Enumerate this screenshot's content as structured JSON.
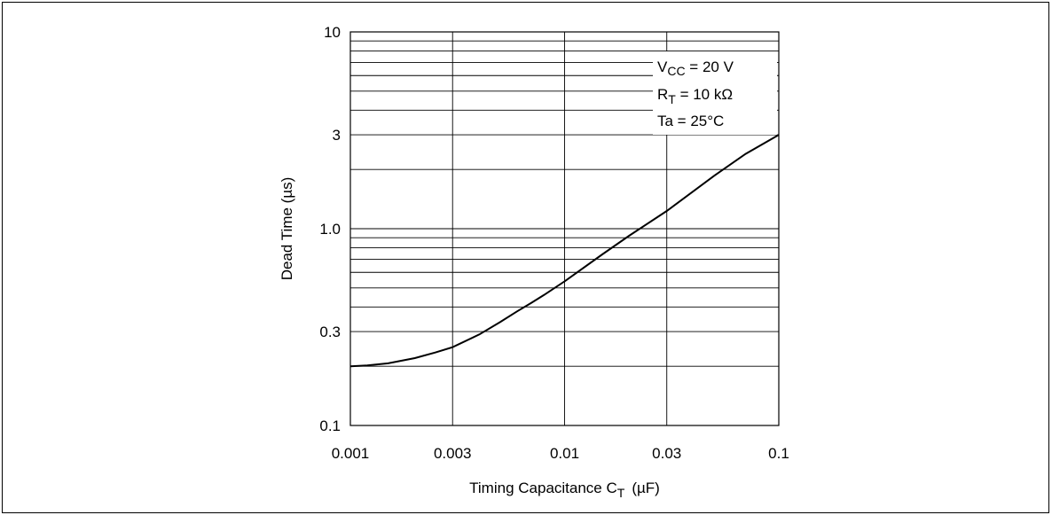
{
  "chart_data": {
    "type": "line",
    "x_scale": "log",
    "y_scale": "log",
    "xlim": [
      0.001,
      0.1
    ],
    "ylim": [
      0.1,
      10
    ],
    "xlabel": "Timing Capacitance  C",
    "xlabel_sub": "T",
    "xlabel_unit": "(µF)",
    "ylabel": "Dead Time  (µs)",
    "x_ticks": [
      {
        "value": 0.001,
        "label": "0.001"
      },
      {
        "value": 0.003,
        "label": "0.003"
      },
      {
        "value": 0.01,
        "label": "0.01"
      },
      {
        "value": 0.03,
        "label": "0.03"
      },
      {
        "value": 0.1,
        "label": "0.1"
      }
    ],
    "y_ticks": [
      {
        "value": 0.1,
        "label": "0.1"
      },
      {
        "value": 0.3,
        "label": "0.3"
      },
      {
        "value": 1.0,
        "label": "1.0"
      },
      {
        "value": 3,
        "label": "3"
      },
      {
        "value": 10,
        "label": "10"
      }
    ],
    "grid": true,
    "annotations": {
      "vcc": {
        "main": "V",
        "sub": "CC",
        "rest": " = 20 V"
      },
      "rt": {
        "main": "R",
        "sub": "T",
        "rest": " = 10 kΩ"
      },
      "ta": {
        "text": "Ta = 25°C"
      }
    },
    "series": [
      {
        "x": [
          0.001,
          0.0012,
          0.0015,
          0.002,
          0.0025,
          0.003,
          0.004,
          0.005,
          0.006,
          0.007,
          0.008,
          0.01,
          0.015,
          0.02,
          0.03,
          0.05,
          0.07,
          0.1
        ],
        "y": [
          0.2,
          0.202,
          0.207,
          0.22,
          0.235,
          0.25,
          0.29,
          0.335,
          0.38,
          0.42,
          0.46,
          0.54,
          0.74,
          0.92,
          1.23,
          1.86,
          2.4,
          3.0
        ]
      }
    ]
  }
}
